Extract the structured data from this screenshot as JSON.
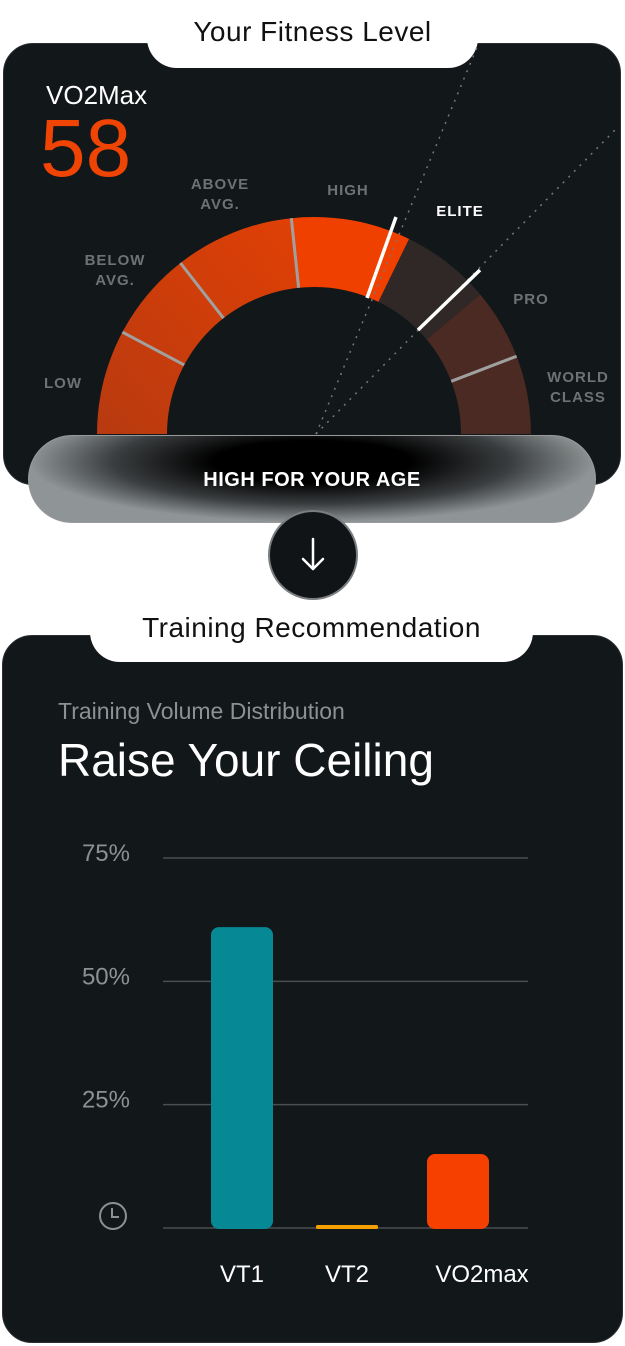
{
  "fitness": {
    "title": "Your Fitness Level",
    "metric_label": "VO2Max",
    "metric_value": "58",
    "levels": [
      {
        "line1": "LOW",
        "line2": ""
      },
      {
        "line1": "BELOW",
        "line2": "AVG."
      },
      {
        "line1": "ABOVE",
        "line2": "AVG."
      },
      {
        "line1": "HIGH",
        "line2": ""
      },
      {
        "line1": "ELITE",
        "line2": ""
      },
      {
        "line1": "PRO",
        "line2": ""
      },
      {
        "line1": "WORLD",
        "line2": "CLASS"
      }
    ],
    "current_level": "HIGH",
    "result": "HIGH FOR YOUR AGE",
    "colors": {
      "value": "#f04405",
      "low": "#b83a10",
      "high": "#f04000",
      "elite": "#2f2826",
      "pro": "#4a2a22"
    }
  },
  "next_button": {
    "icon": "arrow-down-icon"
  },
  "training": {
    "title": "Training Recommendation",
    "subtitle": "Training Volume Distribution",
    "headline": "Raise Your Ceiling"
  },
  "chart_data": {
    "type": "bar",
    "categories": [
      "VT1",
      "VT2",
      "VO2max"
    ],
    "values": [
      61,
      0.5,
      15
    ],
    "colors": [
      "#078895",
      "#f5a000",
      "#f54000"
    ],
    "ylim": [
      0,
      75
    ],
    "yticks": [
      "75%",
      "50%",
      "25%"
    ],
    "ytick_values": [
      75,
      50,
      25
    ],
    "y_axis_icon": "clock-icon",
    "grid": true
  }
}
